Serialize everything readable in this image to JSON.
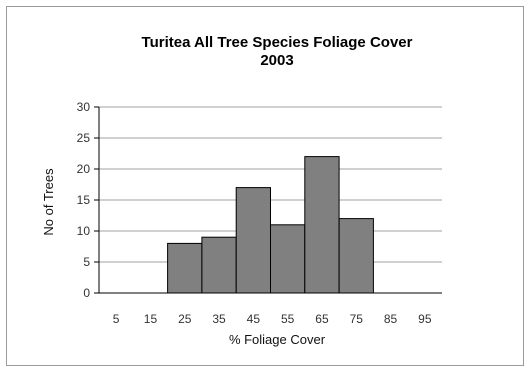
{
  "chart_data": {
    "type": "bar",
    "title": "Turitea All Tree Species Foliage Cover",
    "subtitle": "2003",
    "xlabel": "% Foliage Cover",
    "ylabel": "No of Trees",
    "categories": [
      "5",
      "15",
      "25",
      "35",
      "45",
      "55",
      "65",
      "75",
      "85",
      "95"
    ],
    "values": [
      0,
      0,
      8,
      9,
      17,
      11,
      22,
      12,
      0,
      0
    ],
    "ylim": [
      0,
      30
    ],
    "yticks": [
      "0",
      "5",
      "10",
      "15",
      "20",
      "25",
      "30"
    ],
    "grid": true,
    "legend": "none",
    "bar_color": "#808080",
    "bar_edge_color": "#000000",
    "grid_color": "#a0a0a0"
  }
}
